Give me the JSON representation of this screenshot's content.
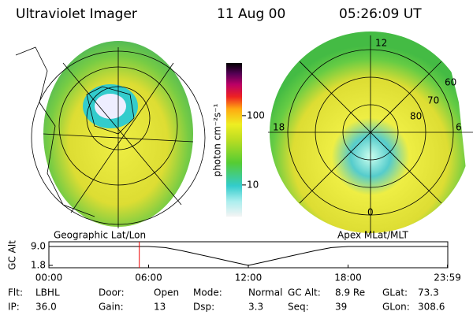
{
  "header": {
    "title": "Ultraviolet Imager",
    "date": "11 Aug 00",
    "time": "05:26:09 UT"
  },
  "colorbar": {
    "label": "photon cm⁻²s⁻¹",
    "scale": "log",
    "lim": [
      3.5,
      575
    ],
    "ticks": [
      10,
      100
    ]
  },
  "left_panel": {
    "caption": "Geographic Lat/Lon"
  },
  "right_panel": {
    "caption": "Apex MLat/MLT",
    "mlt_labels": [
      "12",
      "18",
      "6",
      "0"
    ],
    "mlat_labels": [
      "60",
      "70",
      "80"
    ]
  },
  "gc_alt_plot": {
    "ylabel": "GC Alt",
    "ylim": [
      0.9,
      10.8
    ],
    "yticks": [
      {
        "value": 9,
        "label": "9.0"
      },
      1.8
    ],
    "xlim": [
      0,
      24
    ],
    "xticks": [
      {
        "value": 0,
        "label": "00:00"
      },
      {
        "value": 6,
        "label": "06:00"
      },
      {
        "value": 12,
        "label": "12:00"
      },
      {
        "value": 18,
        "label": "18:00"
      },
      {
        "value": 23.98,
        "label": "23:59"
      }
    ],
    "x": [
      0,
      3,
      6,
      7,
      8,
      9,
      10,
      11,
      12,
      13,
      14,
      15,
      16,
      17,
      18,
      21,
      23.98
    ],
    "values": [
      9.0,
      9.0,
      9.0,
      8.6,
      7.4,
      6.0,
      4.6,
      3.2,
      1.8,
      3.2,
      4.6,
      6.0,
      7.4,
      8.6,
      9.0,
      9.0,
      9.0
    ],
    "current_time": 5.44
  },
  "info": [
    [
      {
        "label": "Flt:",
        "value": "LBHL"
      },
      {
        "label": "Door:",
        "value": "Open"
      },
      {
        "label": "Mode:",
        "value": "Normal"
      },
      {
        "label": "GC Alt:",
        "value": "8.9 Re"
      },
      {
        "label": "GLat:",
        "value": "73.3"
      }
    ],
    [
      {
        "label": "IP:",
        "value": "36.0"
      },
      {
        "label": "Gain:",
        "value": "13"
      },
      {
        "label": "Dsp:",
        "value": "3.3"
      },
      {
        "label": "Seq:",
        "value": "39"
      },
      {
        "label": "GLon:",
        "value": "308.6"
      }
    ]
  ]
}
